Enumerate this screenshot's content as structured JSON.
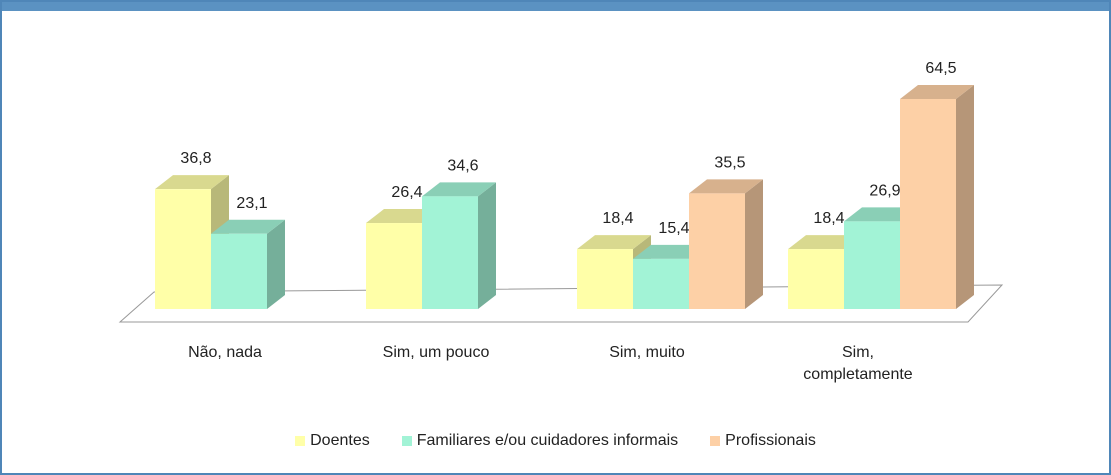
{
  "chart_data": {
    "type": "bar3d",
    "categories": [
      "Não, nada",
      "Sim, um pouco",
      "Sim, muito",
      "Sim, completamente"
    ],
    "series": [
      {
        "name": "Doentes",
        "color": "#ffffa8",
        "values": [
          36.8,
          26.4,
          18.4,
          18.4
        ],
        "value_labels": [
          "36,8",
          "26,4",
          "18,4",
          "18,4"
        ]
      },
      {
        "name": "Familiares e/ou cuidadores informais",
        "color": "#a2f3d6",
        "values": [
          23.1,
          34.6,
          15.4,
          26.9
        ],
        "value_labels": [
          "23,1",
          "34,6",
          "15,4",
          "26,9"
        ]
      },
      {
        "name": "Profissionais",
        "color": "#fdd0a6",
        "values": [
          null,
          null,
          35.5,
          64.5
        ],
        "value_labels": [
          null,
          null,
          "35,5",
          "64,5"
        ]
      }
    ],
    "legend": "bottom"
  }
}
